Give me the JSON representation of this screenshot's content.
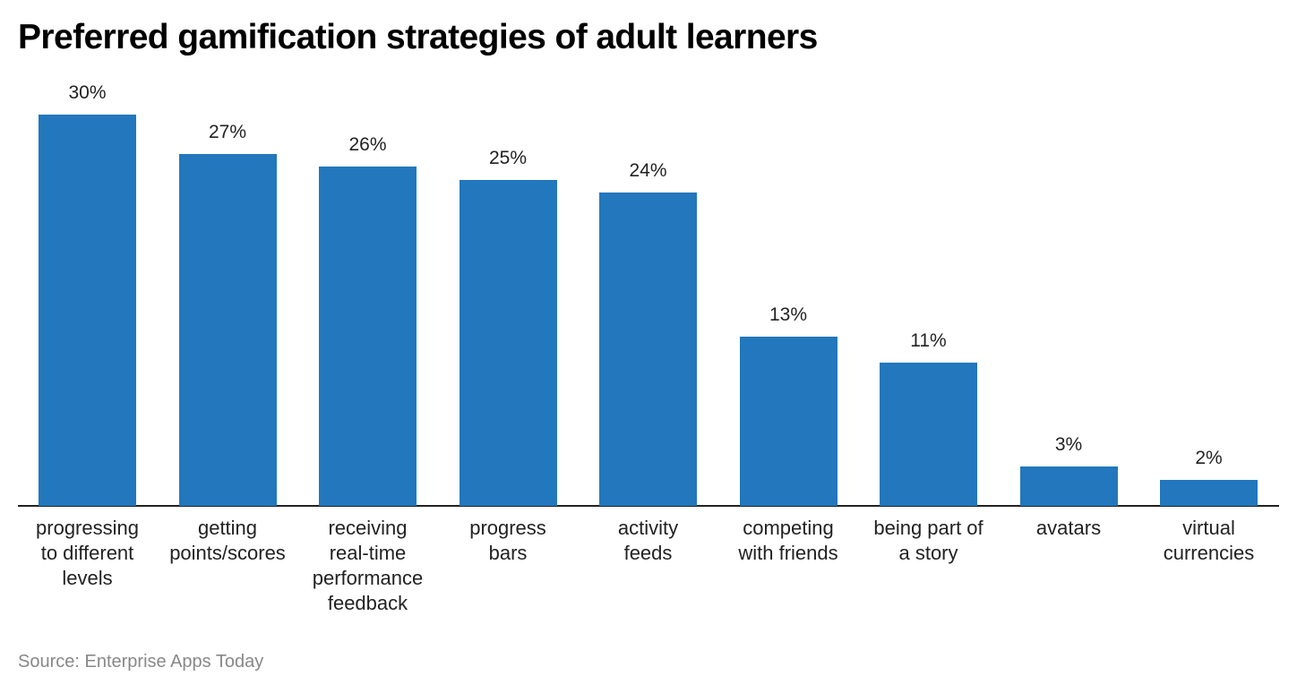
{
  "title": "Preferred gamification strategies of adult learners",
  "source": "Source: Enterprise Apps Today",
  "colors": {
    "bar": "#2277bd",
    "axis": "#222222",
    "source_text": "#888888"
  },
  "chart_data": {
    "type": "bar",
    "title": "Preferred gamification strategies of adult learners",
    "xlabel": "",
    "ylabel": "",
    "ylim": [
      0,
      30
    ],
    "grid": false,
    "legend": null,
    "categories": [
      "progressing to different levels",
      "getting points/scores",
      "receiving real-time performance feedback",
      "progress bars",
      "activity feeds",
      "competing with friends",
      "being part of a story",
      "avatars",
      "virtual currencies"
    ],
    "values": [
      30,
      27,
      26,
      25,
      24,
      13,
      11,
      3,
      2
    ],
    "labels": [
      "30%",
      "27%",
      "26%",
      "25%",
      "24%",
      "13%",
      "11%",
      "3%",
      "2%"
    ],
    "annotations": [
      "Source: Enterprise Apps Today"
    ]
  },
  "bars": [
    {
      "label_lines": [
        "progressing",
        "to different",
        "levels"
      ],
      "value": 30,
      "value_label": "30%"
    },
    {
      "label_lines": [
        "getting",
        "points/scores"
      ],
      "value": 27,
      "value_label": "27%"
    },
    {
      "label_lines": [
        "receiving",
        "real-time",
        "performance",
        "feedback"
      ],
      "value": 26,
      "value_label": "26%"
    },
    {
      "label_lines": [
        "progress",
        "bars"
      ],
      "value": 25,
      "value_label": "25%"
    },
    {
      "label_lines": [
        "activity",
        "feeds"
      ],
      "value": 24,
      "value_label": "24%"
    },
    {
      "label_lines": [
        "competing",
        "with friends"
      ],
      "value": 13,
      "value_label": "13%"
    },
    {
      "label_lines": [
        "being part of",
        "a story"
      ],
      "value": 11,
      "value_label": "11%"
    },
    {
      "label_lines": [
        "avatars"
      ],
      "value": 3,
      "value_label": "3%"
    },
    {
      "label_lines": [
        "virtual",
        "currencies"
      ],
      "value": 2,
      "value_label": "2%"
    }
  ]
}
